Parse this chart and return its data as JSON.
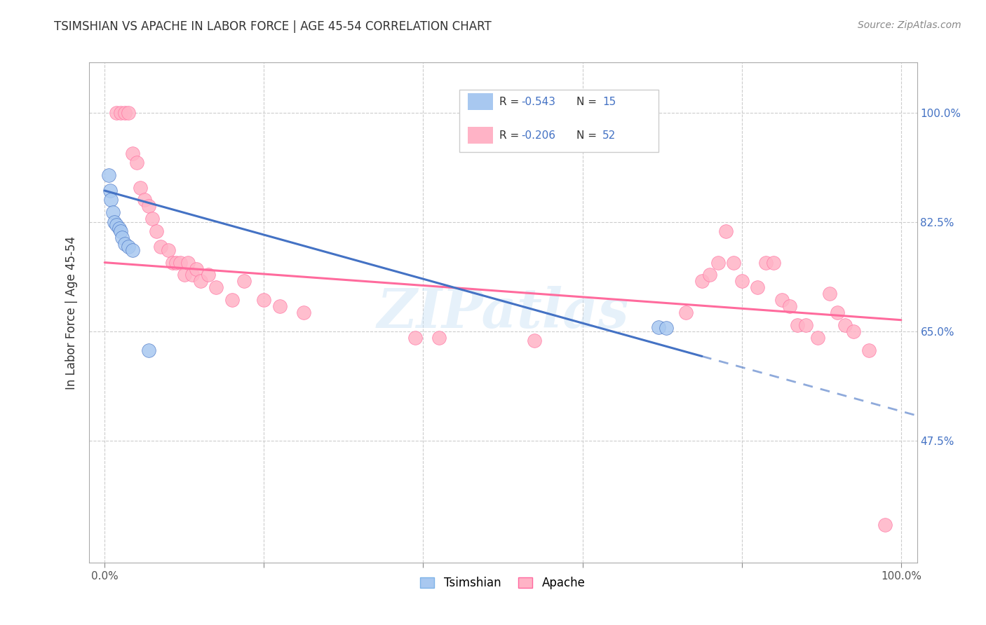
{
  "title": "TSIMSHIAN VS APACHE IN LABOR FORCE | AGE 45-54 CORRELATION CHART",
  "source": "Source: ZipAtlas.com",
  "ylabel": "In Labor Force | Age 45-54",
  "watermark": "ZIPatlas",
  "color_tsimshian": "#A8C8F0",
  "color_apache": "#FFB3C6",
  "trendline_tsimshian": "#4472C4",
  "trendline_apache": "#FF6B9D",
  "trendline_dash": "#A8C8F0",
  "xlim": [
    -0.02,
    1.02
  ],
  "ylim": [
    0.28,
    1.08
  ],
  "yticks": [
    0.475,
    0.65,
    0.825,
    1.0
  ],
  "ytick_labels": [
    "47.5%",
    "65.0%",
    "82.5%",
    "100.0%"
  ],
  "tsimshian_x": [
    0.005,
    0.007,
    0.008,
    0.01,
    0.012,
    0.015,
    0.018,
    0.02,
    0.022,
    0.025,
    0.03,
    0.035,
    0.055,
    0.695,
    0.705
  ],
  "tsimshian_y": [
    0.9,
    0.875,
    0.86,
    0.84,
    0.825,
    0.82,
    0.815,
    0.81,
    0.8,
    0.79,
    0.785,
    0.78,
    0.62,
    0.657,
    0.655
  ],
  "apache_x": [
    0.015,
    0.02,
    0.025,
    0.03,
    0.035,
    0.04,
    0.045,
    0.05,
    0.055,
    0.06,
    0.065,
    0.07,
    0.08,
    0.085,
    0.09,
    0.095,
    0.1,
    0.105,
    0.11,
    0.115,
    0.12,
    0.13,
    0.14,
    0.16,
    0.175,
    0.2,
    0.22,
    0.25,
    0.39,
    0.42,
    0.54,
    0.73,
    0.75,
    0.76,
    0.77,
    0.78,
    0.79,
    0.8,
    0.82,
    0.83,
    0.84,
    0.85,
    0.86,
    0.87,
    0.88,
    0.895,
    0.91,
    0.92,
    0.93,
    0.94,
    0.96,
    0.98
  ],
  "apache_y": [
    1.0,
    1.0,
    1.0,
    1.0,
    0.935,
    0.92,
    0.88,
    0.86,
    0.85,
    0.83,
    0.81,
    0.785,
    0.78,
    0.76,
    0.76,
    0.76,
    0.74,
    0.76,
    0.74,
    0.75,
    0.73,
    0.74,
    0.72,
    0.7,
    0.73,
    0.7,
    0.69,
    0.68,
    0.64,
    0.64,
    0.635,
    0.68,
    0.73,
    0.74,
    0.76,
    0.81,
    0.76,
    0.73,
    0.72,
    0.76,
    0.76,
    0.7,
    0.69,
    0.66,
    0.66,
    0.64,
    0.71,
    0.68,
    0.66,
    0.65,
    0.62,
    0.34
  ],
  "trend_tsim_x0": 0.0,
  "trend_tsim_x1": 0.75,
  "trend_tsim_y0": 0.875,
  "trend_tsim_y1": 0.61,
  "trend_tsim_dash_x0": 0.75,
  "trend_tsim_dash_x1": 1.02,
  "trend_tsim_dash_y0": 0.61,
  "trend_tsim_dash_y1": 0.515,
  "trend_apac_x0": 0.0,
  "trend_apac_x1": 1.0,
  "trend_apac_y0": 0.76,
  "trend_apac_y1": 0.668
}
